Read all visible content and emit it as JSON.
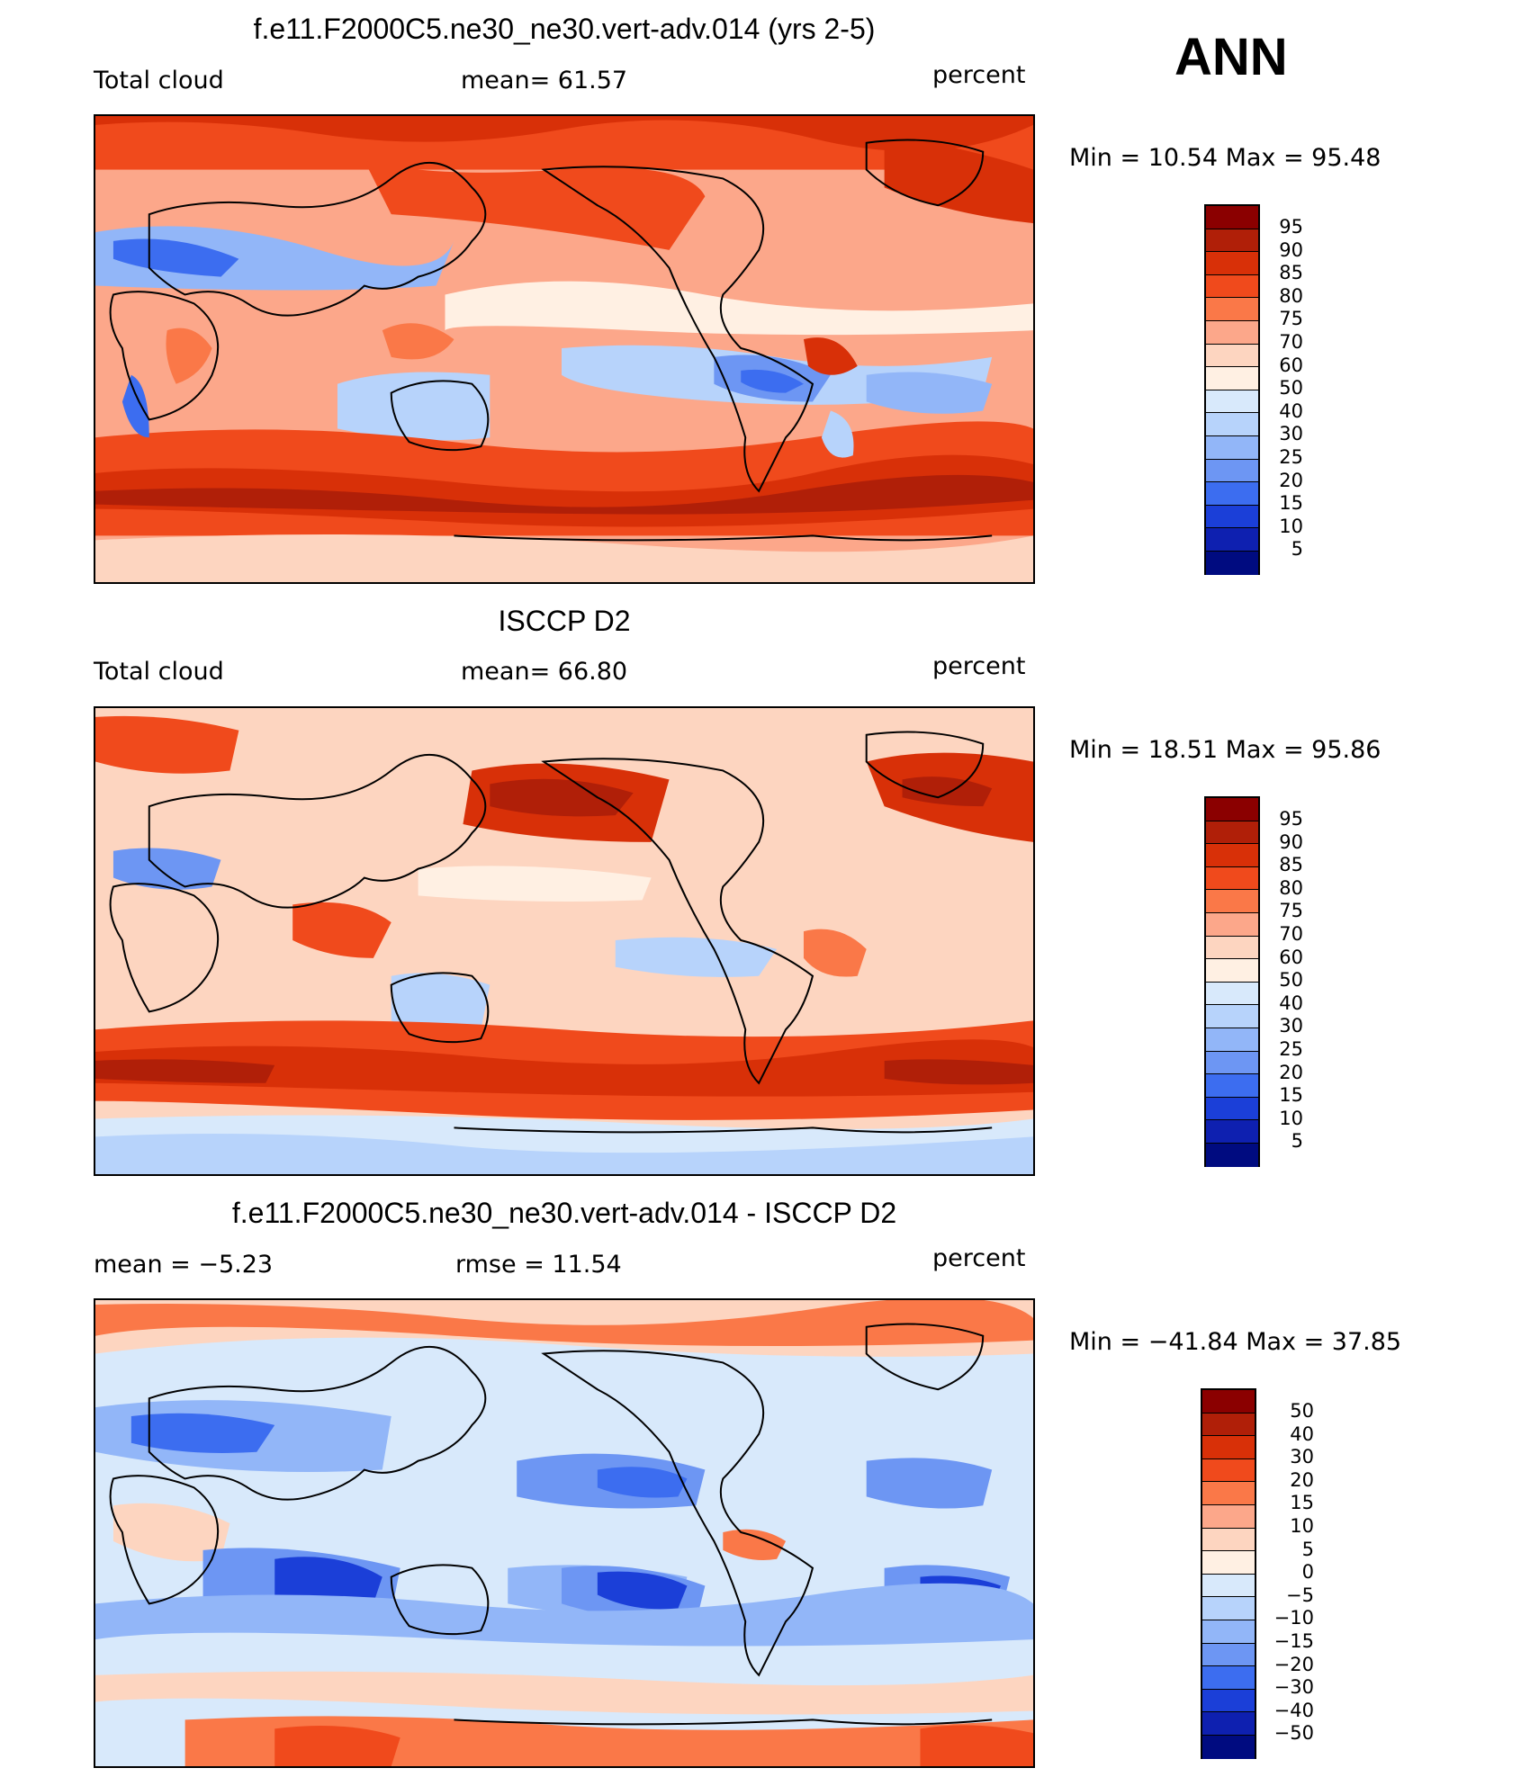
{
  "season": "ANN",
  "colors": {
    "abs_scale": [
      "#8b0000",
      "#b01f08",
      "#d83008",
      "#f04a1c",
      "#fa7848",
      "#fca78a",
      "#fdd5c0",
      "#fff0e3",
      "#d8e9fb",
      "#b7d3fb",
      "#92b6f8",
      "#6d96f3",
      "#3c6df0",
      "#1b3fd8",
      "#0e20b0",
      "#000b80"
    ],
    "diff_scale": [
      "#8b0000",
      "#b01f08",
      "#d83008",
      "#f04a1c",
      "#fa7848",
      "#fca78a",
      "#fdd5c0",
      "#fff0e3",
      "#d8e9fb",
      "#b7d3fb",
      "#92b6f8",
      "#6d96f3",
      "#3c6df0",
      "#1b3fd8",
      "#0e20b0",
      "#000b80"
    ]
  },
  "panels": [
    {
      "title": "f.e11.F2000C5.ne30_ne30.vert-adv.014 (yrs 2-5)",
      "variable": "Total cloud",
      "stat": "mean=   61.57",
      "units": "percent",
      "minmax": "Min =    10.54  Max =    95.48",
      "colorbar_labels": [
        "95",
        "90",
        "85",
        "80",
        "75",
        "70",
        "60",
        "50",
        "40",
        "30",
        "25",
        "20",
        "15",
        "10",
        "5"
      ]
    },
    {
      "title": "ISCCP D2",
      "variable": "Total cloud",
      "stat": "mean=   66.80",
      "units": "percent",
      "minmax": "Min =    18.51  Max =    95.86",
      "colorbar_labels": [
        "95",
        "90",
        "85",
        "80",
        "75",
        "70",
        "60",
        "50",
        "40",
        "30",
        "25",
        "20",
        "15",
        "10",
        "5"
      ]
    },
    {
      "title": "f.e11.F2000C5.ne30_ne30.vert-adv.014 - ISCCP D2",
      "variable": "mean =    −5.23",
      "stat": "rmse =    11.54",
      "units": "percent",
      "minmax": "Min = −41.84  Max =    37.85",
      "colorbar_labels": [
        "50",
        "40",
        "30",
        "20",
        "15",
        "10",
        "5",
        "0",
        "−5",
        "−10",
        "−15",
        "−20",
        "−30",
        "−40",
        "−50"
      ]
    }
  ]
}
